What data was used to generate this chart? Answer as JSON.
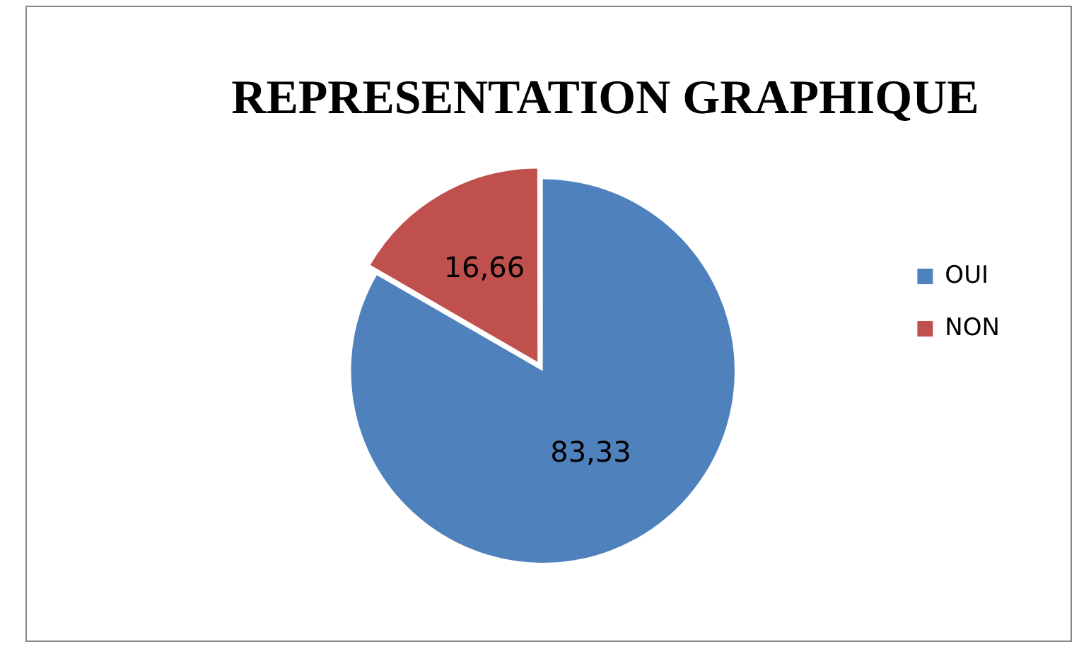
{
  "chart_data": {
    "type": "pie",
    "title": "REPRESENTATION GRAPHIQUE",
    "categories": [
      "OUI",
      "NON"
    ],
    "values": [
      83.33,
      16.66
    ],
    "colors": [
      "#4f81bd",
      "#c0504d"
    ],
    "value_labels": [
      "83,33",
      "16,66"
    ],
    "legend": "right"
  }
}
